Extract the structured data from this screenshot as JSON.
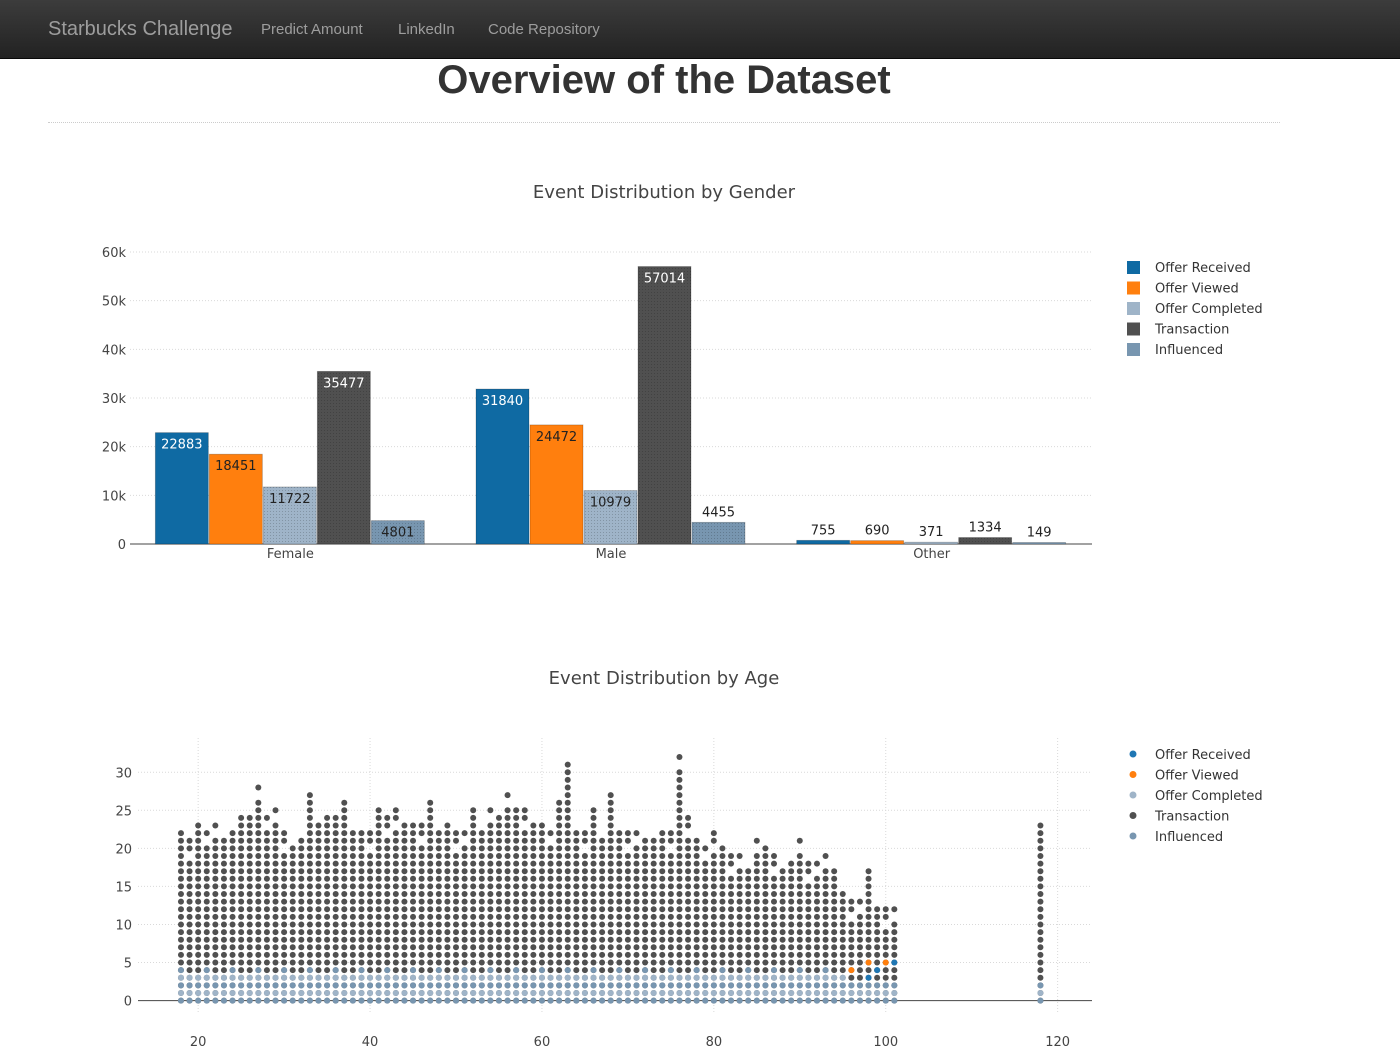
{
  "navbar": {
    "brand": "Starbucks Challenge",
    "links": [
      "Predict Amount",
      "LinkedIn",
      "Code Repository"
    ]
  },
  "page": {
    "title": "Overview of the Dataset"
  },
  "colors": {
    "offer_received": "#1f77b4",
    "offer_received_bar": "#0f6aa3",
    "offer_viewed": "#ff7f0e",
    "offer_completed": "#9fb4c8",
    "transaction": "#505050",
    "influenced": "#7896b0",
    "grid": "#d9d9d9"
  },
  "chart_data": [
    {
      "type": "bar",
      "title": "Event Distribution by Gender",
      "categories": [
        "Female",
        "Male",
        "Other"
      ],
      "series": [
        {
          "name": "Offer Received",
          "values": [
            22883,
            31840,
            755
          ]
        },
        {
          "name": "Offer Viewed",
          "values": [
            18451,
            24472,
            690
          ]
        },
        {
          "name": "Offer Completed",
          "values": [
            11722,
            10979,
            371
          ]
        },
        {
          "name": "Transaction",
          "values": [
            35477,
            57014,
            1334
          ]
        },
        {
          "name": "Influenced",
          "values": [
            4801,
            4455,
            149
          ]
        }
      ],
      "data_labels": [
        "22883",
        "18451",
        "11722",
        "35477",
        "4801",
        "31840",
        "24472",
        "10979",
        "57014",
        "4455",
        "755",
        "690",
        "371",
        "1334",
        "149"
      ],
      "yticks": [
        "0",
        "10k",
        "20k",
        "30k",
        "40k",
        "50k",
        "60k"
      ],
      "ylim": [
        0,
        60000
      ],
      "grid": true,
      "legend_position": "top-right"
    },
    {
      "type": "scatter",
      "title": "Event Distribution by Age",
      "xticks": [
        "20",
        "40",
        "60",
        "80",
        "100",
        "120"
      ],
      "yticks": [
        "0",
        "5",
        "10",
        "15",
        "20",
        "25",
        "30"
      ],
      "xlim": [
        13,
        124
      ],
      "ylim": [
        -1.5,
        34.5
      ],
      "grid": true,
      "legend_position": "top-right",
      "series_names": [
        "Offer Received",
        "Offer Viewed",
        "Offer Completed",
        "Transaction",
        "Influenced"
      ],
      "age_range": [
        18,
        101
      ],
      "outlier_age": 118,
      "transaction_max_count_by_age": {
        "18": 22,
        "19": 21,
        "20": 23,
        "21": 22,
        "22": 23,
        "23": 21,
        "24": 22,
        "25": 25,
        "26": 24,
        "27": 28,
        "28": 24,
        "29": 25,
        "30": 22,
        "31": 21,
        "32": 22,
        "33": 27,
        "34": 23,
        "35": 24,
        "36": 24,
        "37": 27,
        "38": 23,
        "39": 22,
        "40": 22,
        "41": 25,
        "42": 24,
        "43": 25,
        "44": 24,
        "45": 23,
        "46": 23,
        "47": 27,
        "48": 22,
        "49": 23,
        "50": 22,
        "51": 22,
        "52": 25,
        "53": 23,
        "54": 25,
        "55": 24,
        "56": 27,
        "57": 25,
        "58": 25,
        "59": 24,
        "60": 23,
        "61": 22,
        "62": 27,
        "63": 31,
        "64": 22,
        "65": 22,
        "66": 26,
        "67": 22,
        "68": 27,
        "69": 22,
        "70": 22,
        "71": 22,
        "72": 22,
        "73": 21,
        "74": 22,
        "75": 22,
        "76": 32,
        "77": 24,
        "78": 21,
        "79": 20,
        "80": 22,
        "81": 20,
        "82": 19,
        "83": 19,
        "84": 17,
        "85": 21,
        "86": 20,
        "87": 19,
        "88": 18,
        "89": 18,
        "90": 21,
        "91": 18,
        "92": 18,
        "93": 19,
        "94": 17,
        "95": 15,
        "96": 13,
        "97": 13,
        "98": 17,
        "99": 12,
        "100": 12,
        "101": 12,
        "118": 23
      }
    }
  ]
}
